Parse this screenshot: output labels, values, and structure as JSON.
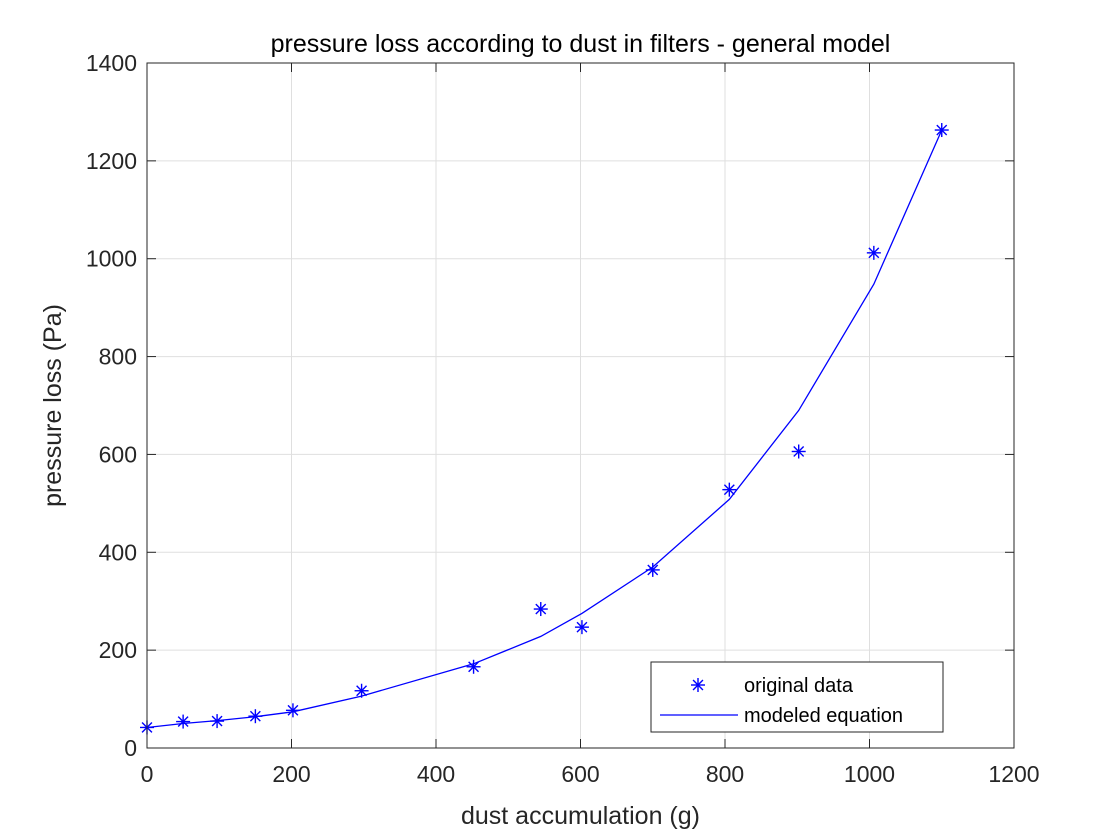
{
  "chart_data": {
    "type": "scatter",
    "title": "pressure loss according to dust in filters - general model",
    "xlabel": "dust accumulation (g)",
    "ylabel": "pressure loss (Pa)",
    "xlim": [
      0,
      1200
    ],
    "ylim": [
      0,
      1400
    ],
    "xticks": [
      0,
      200,
      400,
      600,
      800,
      1000,
      1200
    ],
    "yticks": [
      0,
      200,
      400,
      600,
      800,
      1000,
      1200,
      1400
    ],
    "grid": true,
    "legend_position": "bottom-right",
    "series": [
      {
        "name": "original data",
        "style": "markers",
        "marker": "asterisk",
        "color": "#0000ff",
        "x": [
          0,
          50,
          97,
          150,
          202,
          297,
          452,
          545,
          602,
          700,
          806,
          902,
          1006,
          1100
        ],
        "y": [
          42,
          54,
          55,
          65,
          77,
          117,
          166,
          284,
          247,
          364,
          528,
          606,
          1012,
          1263
        ]
      },
      {
        "name": "modeled equation",
        "style": "line",
        "color": "#0000ff",
        "x": [
          0,
          50,
          97,
          150,
          202,
          297,
          452,
          545,
          602,
          700,
          806,
          902,
          1006,
          1100
        ],
        "y": [
          42,
          50,
          56,
          64,
          74,
          106,
          172,
          228,
          275,
          370,
          508,
          690,
          948,
          1263
        ]
      }
    ]
  }
}
